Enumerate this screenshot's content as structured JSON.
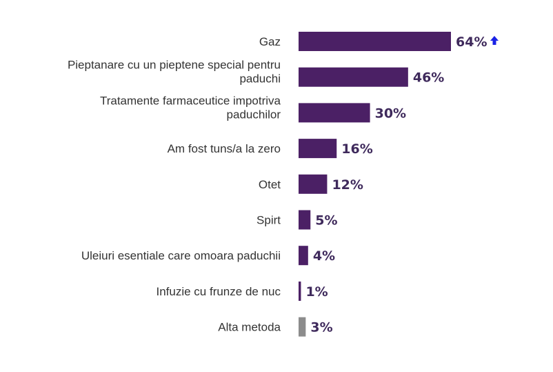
{
  "chart_data": {
    "type": "bar",
    "orientation": "horizontal",
    "categories": [
      [
        "Gaz"
      ],
      [
        "Pieptanare cu un pieptene special pentru",
        "paduchi"
      ],
      [
        "Tratamente farmaceutice impotriva",
        "paduchilor"
      ],
      [
        "Am fost tuns/a la zero"
      ],
      [
        "Otet"
      ],
      [
        "Spirt"
      ],
      [
        "Uleiuri esentiale care omoara paduchii"
      ],
      [
        "Infuzie cu frunze de nuc"
      ],
      [
        "Alta metoda"
      ]
    ],
    "values": [
      64,
      46,
      30,
      16,
      12,
      5,
      4,
      1,
      3
    ],
    "value_labels": [
      "64%",
      "46%",
      "30%",
      "16%",
      "12%",
      "5%",
      "4%",
      "1%",
      "3%"
    ],
    "bar_colors": [
      "#4b2065",
      "#4b2065",
      "#4b2065",
      "#4b2065",
      "#4b2065",
      "#4b2065",
      "#4b2065",
      "#4b2065",
      "#8c8c8c"
    ],
    "arrow_up_on": "Gaz",
    "arrow_color": "#1a22e6",
    "xlim": [
      0,
      64
    ],
    "grid": false,
    "legend": "none"
  }
}
